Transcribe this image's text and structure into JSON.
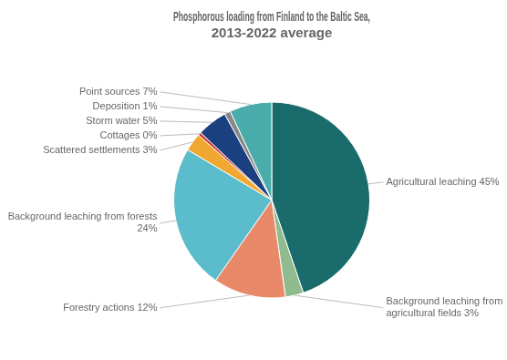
{
  "chart_data": {
    "type": "pie",
    "title": "Phosphorous loading from Finland to the Baltic Sea,\n2013-2022 average",
    "categories": [
      "Agricultural leaching 45%",
      "Background leaching from agricultural fields 3%",
      "Forestry actions 12%",
      "Background leaching from forests 24%",
      "Scattered settlements 3%",
      "Cottages 0%",
      "Storm water 5%",
      "Deposition 1%",
      "Point sources 7%"
    ],
    "values": [
      45,
      3,
      12,
      24,
      3,
      0.5,
      5,
      1,
      7
    ],
    "colors": [
      "#1a6b6b",
      "#8fbb8f",
      "#e8896a",
      "#5bbccc",
      "#f0a830",
      "#cc3333",
      "#1a4080",
      "#888888",
      "#4aacaa"
    ]
  }
}
